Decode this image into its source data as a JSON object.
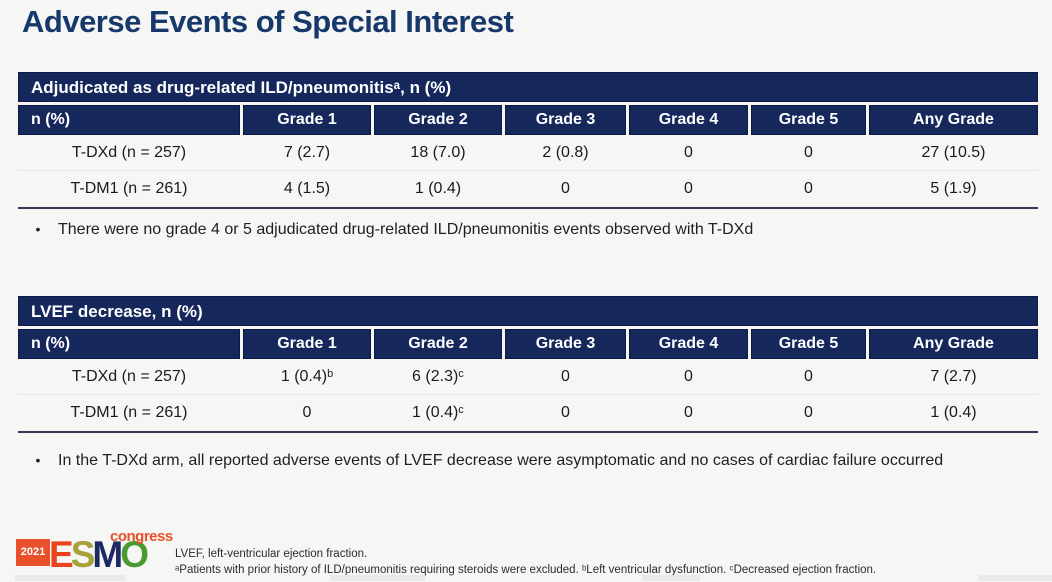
{
  "page": {
    "title": "Adverse Events of Special Interest",
    "bullet_glyph": "•"
  },
  "colors": {
    "title_navy": "#17386b",
    "header_band_navy": "#16275c",
    "header_text": "#ffffff",
    "body_text": "#1b1b1b",
    "table_bottom_line": "#333a4e",
    "logo_orange": "#e8512b",
    "logo_olive": "#a7a139",
    "logo_navy": "#1c2a63",
    "logo_green": "#48992e",
    "background": "#f6f6f5"
  },
  "tables": [
    {
      "section_header": "Adjudicated as drug-related ILD/pneumonitisᵃ, n (%)",
      "columns": [
        "n (%)",
        "Grade 1",
        "Grade 2",
        "Grade 3",
        "Grade 4",
        "Grade 5",
        "Any Grade"
      ],
      "rows": [
        {
          "cells": [
            "T-DXd (n = 257)",
            "7 (2.7)",
            "18 (7.0)",
            "2 (0.8)",
            "0",
            "0",
            "27 (10.5)"
          ]
        },
        {
          "cells": [
            "T-DM1 (n = 261)",
            "4 (1.5)",
            "1 (0.4)",
            "0",
            "0",
            "0",
            "5 (1.9)"
          ]
        }
      ],
      "note": "There were no grade 4 or 5 adjudicated drug-related ILD/pneumonitis events observed with T-DXd"
    },
    {
      "section_header": "LVEF decrease, n (%)",
      "columns": [
        "n (%)",
        "Grade 1",
        "Grade 2",
        "Grade 3",
        "Grade 4",
        "Grade 5",
        "Any Grade"
      ],
      "rows": [
        {
          "cells": [
            "T-DXd (n = 257)",
            "1 (0.4)ᵇ",
            "6 (2.3)ᶜ",
            "0",
            "0",
            "0",
            "7 (2.7)"
          ]
        },
        {
          "cells": [
            "T-DM1 (n = 261)",
            "0",
            "1 (0.4)ᶜ",
            "0",
            "0",
            "0",
            "1 (0.4)"
          ]
        }
      ],
      "note": "In the T-DXd arm, all reported adverse events of LVEF decrease were asymptomatic and no cases of cardiac failure occurred"
    }
  ],
  "footer": {
    "logo": {
      "year": "2021",
      "letters": [
        "E",
        "S",
        "M",
        "O"
      ],
      "congress": "congress"
    },
    "footnotes": [
      "LVEF, left-ventricular ejection fraction.",
      "ᵃPatients with prior history of ILD/pneumonitis requiring steroids were excluded.  ᵇLeft ventricular dysfunction. ᶜDecreased ejection fraction."
    ]
  }
}
